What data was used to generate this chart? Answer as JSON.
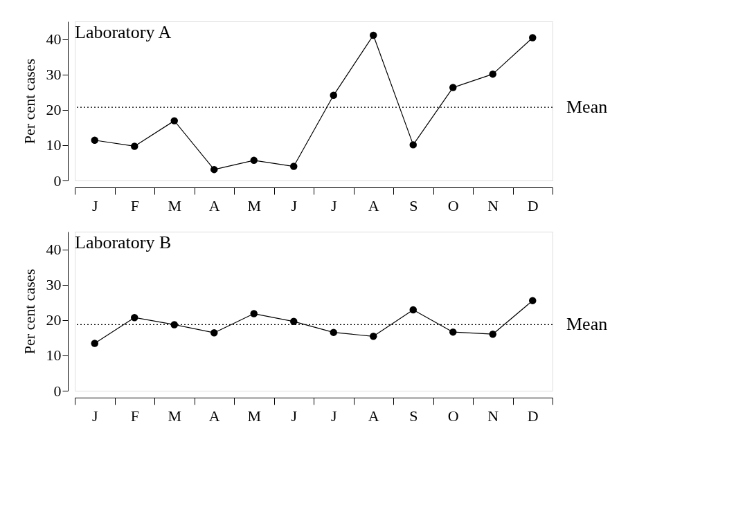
{
  "chart_data": [
    {
      "type": "line",
      "title": "Laboratory A",
      "ylabel": "Per cent cases",
      "categories": [
        "J",
        "F",
        "M",
        "A",
        "M",
        "J",
        "J",
        "A",
        "S",
        "O",
        "N",
        "D"
      ],
      "series": [
        {
          "color": "#000000",
          "values": [
            11.4,
            9.7,
            16.9,
            3.1,
            5.7,
            4.0,
            24.1,
            41.1,
            10.1,
            26.3,
            30.1,
            40.4
          ]
        }
      ],
      "ylim": [
        0,
        45
      ],
      "yticks": [
        0,
        10,
        20,
        30,
        40
      ],
      "marker": "circle",
      "line_style": "solid",
      "ref_lines": [
        {
          "axis": "y",
          "value": 20.7,
          "label": "Mean",
          "line_style": "dotted"
        }
      ]
    },
    {
      "type": "line",
      "title": "Laboratory B",
      "ylabel": "Per cent cases",
      "categories": [
        "J",
        "F",
        "M",
        "A",
        "M",
        "J",
        "J",
        "A",
        "S",
        "O",
        "N",
        "D"
      ],
      "series": [
        {
          "color": "#000000",
          "values": [
            13.4,
            20.7,
            18.7,
            16.4,
            21.8,
            19.6,
            16.5,
            15.4,
            22.9,
            16.6,
            16.0,
            25.5
          ]
        }
      ],
      "ylim": [
        0,
        45
      ],
      "yticks": [
        0,
        10,
        20,
        30,
        40
      ],
      "marker": "circle",
      "line_style": "solid",
      "ref_lines": [
        {
          "axis": "y",
          "value": 18.7,
          "label": "Mean",
          "line_style": "dotted"
        }
      ]
    }
  ]
}
